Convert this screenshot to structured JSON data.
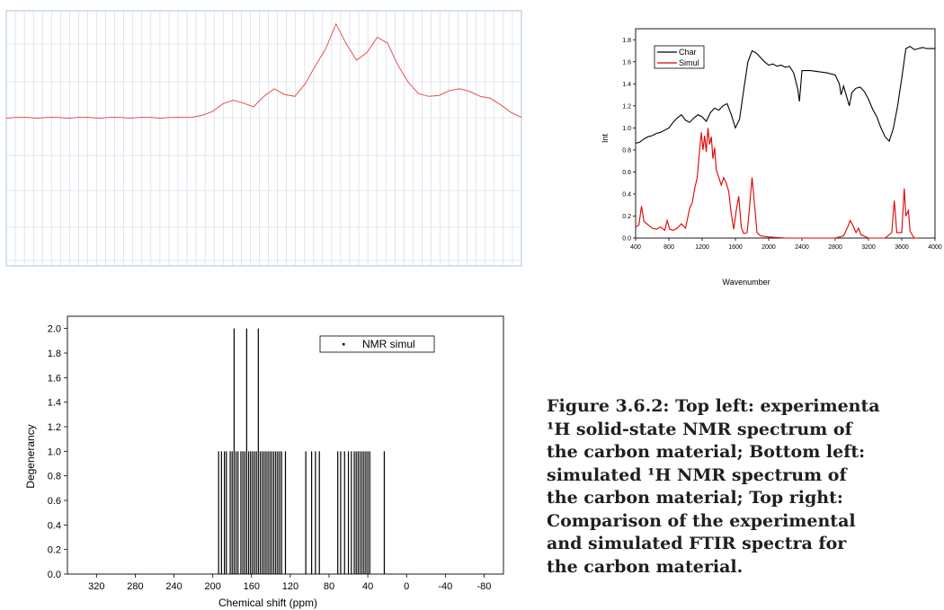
{
  "caption": {
    "lines": [
      "Figure 3.6.2: Top left: experimenta",
      "¹H solid-state NMR spectrum of",
      "the carbon material; Bottom left:",
      "simulated ¹H NMR spectrum of",
      "the carbon material; Top right:",
      "Comparison of the experimental",
      "and simulated FTIR spectra for",
      "the carbon material."
    ]
  },
  "chart_data": [
    {
      "id": "experimental-nmr",
      "type": "line",
      "title": "",
      "xlabel": "",
      "ylabel": "",
      "grid": true,
      "colors": {
        "line": "#e8504f",
        "grid": "#c9d6e3",
        "frame": "#a9c4d9"
      },
      "x": [
        0,
        2,
        4,
        6,
        8,
        10,
        12,
        14,
        16,
        18,
        20,
        22,
        24,
        26,
        28,
        30,
        32,
        34,
        36,
        38,
        40,
        42,
        44,
        46,
        48,
        50,
        52,
        54,
        56,
        58,
        60,
        62,
        64,
        66,
        68,
        70,
        72,
        74,
        76,
        78,
        80,
        82,
        84,
        86,
        88,
        90,
        92,
        94,
        96,
        98,
        100
      ],
      "y": [
        0,
        0,
        0,
        0,
        0,
        0,
        0,
        0,
        0,
        0,
        0,
        0,
        0,
        0,
        0,
        0,
        0,
        0,
        0.01,
        0.02,
        0.06,
        0.15,
        0.18,
        0.15,
        0.12,
        0.22,
        0.3,
        0.25,
        0.22,
        0.35,
        0.55,
        0.72,
        0.98,
        0.78,
        0.6,
        0.68,
        0.85,
        0.78,
        0.55,
        0.38,
        0.25,
        0.22,
        0.24,
        0.28,
        0.3,
        0.28,
        0.22,
        0.2,
        0.14,
        0.05,
        0
      ]
    },
    {
      "id": "ftir-comparison",
      "type": "line",
      "title": "",
      "xlabel": "Wavenumber",
      "ylabel": "Int",
      "xlim": [
        400,
        4000
      ],
      "ylim": [
        0,
        1.9
      ],
      "x_ticks": [
        "400",
        "800",
        "1200",
        "1600",
        "2000",
        "2400",
        "2800",
        "3200",
        "3600",
        "4000"
      ],
      "y_ticks": [
        "0.0",
        "0.2",
        "0.4",
        "0.6",
        "0.8",
        "1.0",
        "1.2",
        "1.4",
        "1.6",
        "1.8"
      ],
      "legend": {
        "placement": "top-left"
      },
      "grid": false,
      "series": [
        {
          "name": "Char",
          "color": "#000000",
          "points": [
            [
              400,
              0.86
            ],
            [
              450,
              0.87
            ],
            [
              500,
              0.9
            ],
            [
              550,
              0.92
            ],
            [
              600,
              0.93
            ],
            [
              650,
              0.95
            ],
            [
              700,
              0.96
            ],
            [
              750,
              0.98
            ],
            [
              800,
              1.0
            ],
            [
              850,
              1.05
            ],
            [
              900,
              1.09
            ],
            [
              950,
              1.12
            ],
            [
              1000,
              1.07
            ],
            [
              1050,
              1.05
            ],
            [
              1100,
              1.09
            ],
            [
              1150,
              1.12
            ],
            [
              1200,
              1.1
            ],
            [
              1250,
              1.06
            ],
            [
              1300,
              1.14
            ],
            [
              1350,
              1.18
            ],
            [
              1400,
              1.16
            ],
            [
              1450,
              1.2
            ],
            [
              1500,
              1.22
            ],
            [
              1550,
              1.12
            ],
            [
              1600,
              1.0
            ],
            [
              1650,
              1.08
            ],
            [
              1700,
              1.35
            ],
            [
              1750,
              1.6
            ],
            [
              1800,
              1.7
            ],
            [
              1850,
              1.68
            ],
            [
              1900,
              1.64
            ],
            [
              1950,
              1.6
            ],
            [
              2000,
              1.57
            ],
            [
              2050,
              1.58
            ],
            [
              2100,
              1.56
            ],
            [
              2150,
              1.57
            ],
            [
              2200,
              1.55
            ],
            [
              2250,
              1.56
            ],
            [
              2300,
              1.5
            ],
            [
              2350,
              1.35
            ],
            [
              2370,
              1.24
            ],
            [
              2400,
              1.52
            ],
            [
              2500,
              1.52
            ],
            [
              2600,
              1.51
            ],
            [
              2700,
              1.5
            ],
            [
              2800,
              1.48
            ],
            [
              2850,
              1.4
            ],
            [
              2870,
              1.3
            ],
            [
              2900,
              1.38
            ],
            [
              2950,
              1.25
            ],
            [
              2970,
              1.2
            ],
            [
              3000,
              1.32
            ],
            [
              3050,
              1.36
            ],
            [
              3100,
              1.37
            ],
            [
              3150,
              1.33
            ],
            [
              3200,
              1.26
            ],
            [
              3250,
              1.17
            ],
            [
              3300,
              1.1
            ],
            [
              3350,
              1.0
            ],
            [
              3400,
              0.92
            ],
            [
              3450,
              0.88
            ],
            [
              3500,
              1.0
            ],
            [
              3550,
              1.2
            ],
            [
              3600,
              1.45
            ],
            [
              3650,
              1.72
            ],
            [
              3700,
              1.74
            ],
            [
              3750,
              1.71
            ],
            [
              3800,
              1.72
            ],
            [
              3850,
              1.73
            ],
            [
              3900,
              1.72
            ],
            [
              4000,
              1.72
            ]
          ]
        },
        {
          "name": "Simul",
          "color": "#e00000",
          "points": [
            [
              400,
              0.1
            ],
            [
              440,
              0.12
            ],
            [
              470,
              0.29
            ],
            [
              500,
              0.15
            ],
            [
              550,
              0.12
            ],
            [
              600,
              0.09
            ],
            [
              650,
              0.08
            ],
            [
              700,
              0.1
            ],
            [
              750,
              0.07
            ],
            [
              780,
              0.16
            ],
            [
              810,
              0.08
            ],
            [
              850,
              0.07
            ],
            [
              900,
              0.09
            ],
            [
              950,
              0.13
            ],
            [
              1000,
              0.09
            ],
            [
              1050,
              0.27
            ],
            [
              1080,
              0.32
            ],
            [
              1110,
              0.45
            ],
            [
              1140,
              0.55
            ],
            [
              1170,
              0.8
            ],
            [
              1190,
              0.96
            ],
            [
              1210,
              0.8
            ],
            [
              1230,
              0.93
            ],
            [
              1250,
              0.78
            ],
            [
              1270,
              1.0
            ],
            [
              1290,
              0.85
            ],
            [
              1310,
              0.92
            ],
            [
              1330,
              0.72
            ],
            [
              1350,
              0.82
            ],
            [
              1370,
              0.62
            ],
            [
              1400,
              0.55
            ],
            [
              1430,
              0.48
            ],
            [
              1460,
              0.55
            ],
            [
              1490,
              0.5
            ],
            [
              1520,
              0.42
            ],
            [
              1550,
              0.22
            ],
            [
              1580,
              0.08
            ],
            [
              1610,
              0.25
            ],
            [
              1640,
              0.38
            ],
            [
              1670,
              0.1
            ],
            [
              1700,
              0.04
            ],
            [
              1740,
              0.05
            ],
            [
              1770,
              0.28
            ],
            [
              1800,
              0.55
            ],
            [
              1830,
              0.3
            ],
            [
              1860,
              0.05
            ],
            [
              1900,
              0.02
            ],
            [
              2000,
              0.01
            ],
            [
              2200,
              0.0
            ],
            [
              2400,
              0.0
            ],
            [
              2600,
              0.0
            ],
            [
              2800,
              0.0
            ],
            [
              2900,
              0.02
            ],
            [
              2950,
              0.1
            ],
            [
              2980,
              0.16
            ],
            [
              3010,
              0.12
            ],
            [
              3050,
              0.05
            ],
            [
              3080,
              0.09
            ],
            [
              3110,
              0.03
            ],
            [
              3200,
              0.0
            ],
            [
              3400,
              0.0
            ],
            [
              3480,
              0.05
            ],
            [
              3510,
              0.34
            ],
            [
              3540,
              0.05
            ],
            [
              3600,
              0.05
            ],
            [
              3630,
              0.45
            ],
            [
              3650,
              0.2
            ],
            [
              3680,
              0.25
            ],
            [
              3700,
              0.06
            ],
            [
              3750,
              0.0
            ],
            [
              3800,
              0.0
            ]
          ]
        }
      ]
    },
    {
      "id": "simulated-nmr",
      "type": "bar",
      "title": "",
      "xlabel": "Chemical shift (ppm)",
      "ylabel": "Degenerancy",
      "xlim": [
        350,
        -100
      ],
      "ylim": [
        0,
        2.1
      ],
      "x_ticks": [
        "320",
        "280",
        "240",
        "200",
        "160",
        "120",
        "80",
        "40",
        "0",
        "-40",
        "-80"
      ],
      "y_ticks": [
        "0.0",
        "0.2",
        "0.4",
        "0.6",
        "0.8",
        "1.0",
        "1.2",
        "1.4",
        "1.6",
        "1.8",
        "2.0"
      ],
      "legend": {
        "placement": "top-right",
        "label": "NMR simul"
      },
      "grid": false,
      "series": [
        {
          "name": "NMR simul",
          "shifts": [
            194,
            191,
            188,
            186,
            182,
            180,
            178,
            176,
            174,
            171,
            169,
            167,
            165,
            163,
            161,
            159,
            157,
            155,
            153,
            151,
            149,
            147,
            145,
            143,
            141,
            139,
            137,
            135,
            133,
            131,
            129,
            125,
            104,
            98,
            94,
            90,
            71,
            68,
            64,
            60,
            57,
            54,
            52,
            50,
            48,
            46,
            44,
            42,
            40,
            38,
            23
          ],
          "values": [
            1,
            1,
            1,
            1,
            1,
            1,
            2,
            1,
            1,
            1,
            1,
            1,
            2,
            1,
            1,
            1,
            1,
            1,
            2,
            1,
            1,
            1,
            1,
            1,
            1,
            1,
            1,
            1,
            1,
            1,
            1,
            1,
            1,
            1,
            1,
            1,
            1,
            1,
            1,
            1,
            1,
            1,
            1,
            1,
            1,
            1,
            1,
            1,
            1,
            1,
            1
          ]
        }
      ]
    }
  ]
}
